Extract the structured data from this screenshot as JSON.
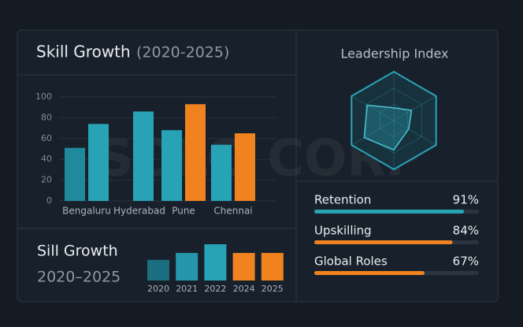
{
  "watermark": "SOLO CORP",
  "chart_data": [
    {
      "type": "bar",
      "title": "Skill Growth",
      "subtitle": "(2020-2025)",
      "categories": [
        "Bengaluru",
        "Hyderabad",
        "Pune",
        "Chennai"
      ],
      "series": [
        {
          "colors": [
            "#1f8a9c",
            "#27a3b5",
            "#27a3b5",
            "#27a3b5"
          ],
          "values": [
            51,
            86,
            68,
            54
          ]
        },
        {
          "colors": [
            "#27a3b5",
            null,
            "#f0831f",
            "#f0831f"
          ],
          "values": [
            74,
            null,
            93,
            65
          ]
        }
      ],
      "ylim": [
        0,
        100
      ],
      "yticks": [
        0,
        20,
        40,
        60,
        80,
        100
      ],
      "grid": true
    },
    {
      "type": "radar",
      "title": "Leadership Index",
      "values": [
        26,
        42,
        35,
        60,
        70,
        63
      ],
      "rlim": [
        0,
        100
      ],
      "color": "#2aa3b8"
    },
    {
      "type": "progress",
      "categories": [
        "Retention",
        "Upskilling",
        "Global Roles"
      ],
      "values": [
        91,
        84,
        67
      ],
      "value_labels": [
        "91%",
        "84%",
        "67%"
      ],
      "colors": [
        "#27a3b5",
        "#f0831f",
        "#f0831f"
      ],
      "xlim": [
        0,
        100
      ]
    },
    {
      "type": "column",
      "title": "Sill Growth",
      "subtitle": "2020–2025",
      "categories": [
        "2020",
        "2021",
        "2022",
        "2024",
        "2025"
      ],
      "values": [
        57,
        76,
        100,
        76,
        76
      ],
      "colors": [
        "#1c6f80",
        "#2596ab",
        "#27a3b5",
        "#f0831f",
        "#f0831f"
      ]
    }
  ]
}
